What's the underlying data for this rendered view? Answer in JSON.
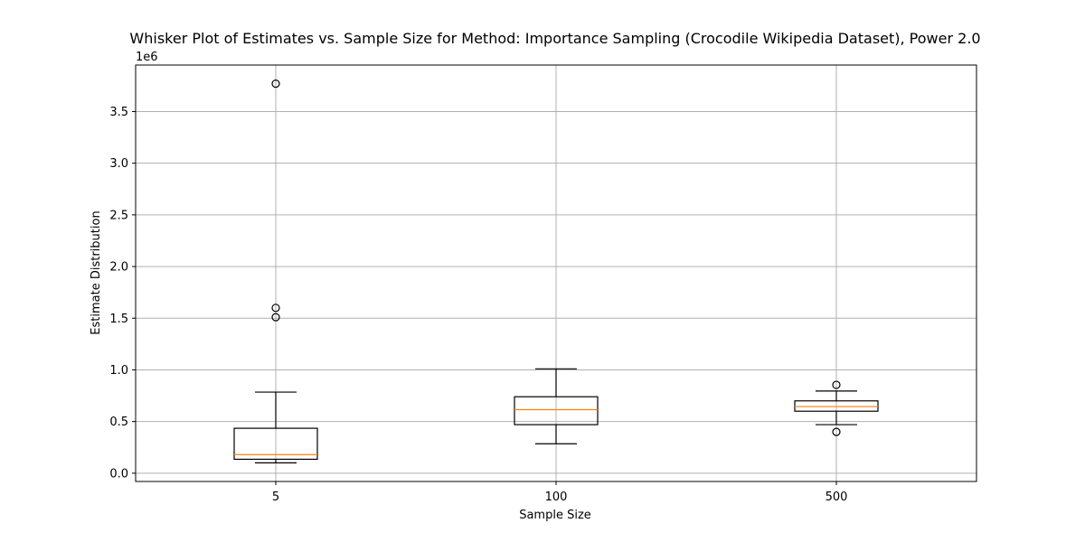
{
  "chart_data": {
    "type": "boxplot",
    "title": "Whisker Plot of Estimates vs. Sample Size for Method: Importance Sampling (Crocodile Wikipedia Dataset), Power 2.0",
    "xlabel": "Sample Size",
    "ylabel": "Estimate Distribution",
    "y_offset_label": "1e6",
    "categories": [
      "5",
      "100",
      "500"
    ],
    "ylim": [
      -80000,
      3950000
    ],
    "yticks": [
      0,
      500000,
      1000000,
      1500000,
      2000000,
      2500000,
      3000000,
      3500000
    ],
    "ytick_labels": [
      "0.0",
      "0.5",
      "1.0",
      "1.5",
      "2.0",
      "2.5",
      "3.0",
      "3.5"
    ],
    "grid": true,
    "boxes": [
      {
        "category": "5",
        "whisker_low": 100000,
        "q1": 135000,
        "median": 180000,
        "q3": 435000,
        "whisker_high": 785000,
        "outliers": [
          1510000,
          1600000,
          3770000
        ]
      },
      {
        "category": "100",
        "whisker_low": 285000,
        "q1": 470000,
        "median": 615000,
        "q3": 740000,
        "whisker_high": 1010000,
        "outliers": []
      },
      {
        "category": "500",
        "whisker_low": 470000,
        "q1": 600000,
        "median": 645000,
        "q3": 700000,
        "whisker_high": 795000,
        "outliers": [
          400000,
          855000
        ]
      }
    ],
    "colors": {
      "box": "#000000",
      "median": "#ff7f0e",
      "grid": "#b0b0b0"
    }
  }
}
